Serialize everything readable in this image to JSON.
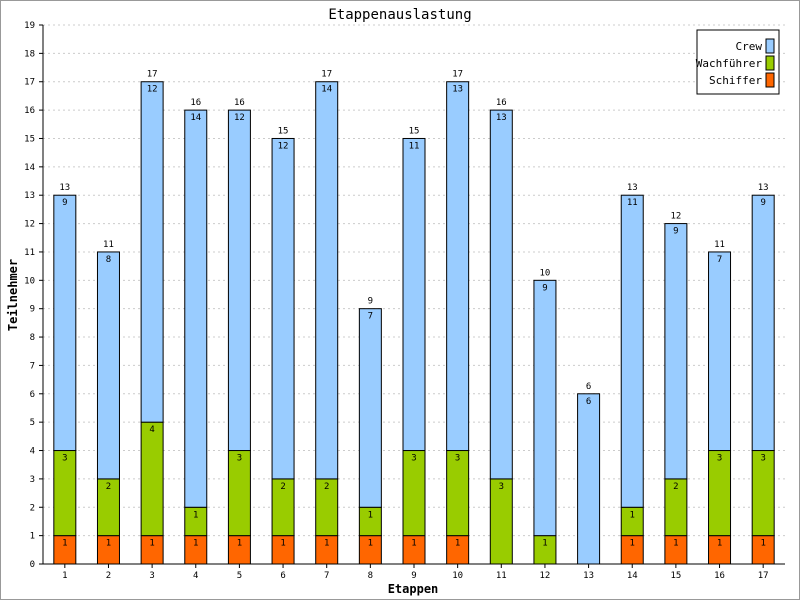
{
  "chart_data": {
    "type": "bar",
    "stacked": true,
    "title": "Etappenauslastung",
    "xlabel": "Etappen",
    "ylabel": "Teilnehmer",
    "ylim": [
      0,
      19
    ],
    "yticks": [
      "0",
      "1",
      "2",
      "3",
      "4",
      "5",
      "6",
      "7",
      "8",
      "9",
      "10",
      "11",
      "12",
      "13",
      "14",
      "15",
      "16",
      "17",
      "18",
      "19"
    ],
    "grid": true,
    "legend_position": "top-right",
    "categories": [
      "1",
      "2",
      "3",
      "4",
      "5",
      "6",
      "7",
      "8",
      "9",
      "10",
      "11",
      "12",
      "13",
      "14",
      "15",
      "16",
      "17"
    ],
    "series": [
      {
        "name": "Schiffer",
        "color": "#ff6600",
        "values": [
          1,
          1,
          1,
          1,
          1,
          1,
          1,
          1,
          1,
          1,
          0,
          0,
          0,
          1,
          1,
          1,
          1
        ]
      },
      {
        "name": "Wachführer",
        "color": "#99cc00",
        "values": [
          3,
          2,
          4,
          1,
          3,
          2,
          2,
          1,
          3,
          3,
          3,
          1,
          0,
          1,
          2,
          3,
          3
        ]
      },
      {
        "name": "Crew",
        "color": "#99ccff",
        "values": [
          9,
          8,
          12,
          14,
          12,
          12,
          14,
          7,
          11,
          13,
          13,
          9,
          6,
          11,
          9,
          7,
          9
        ]
      }
    ],
    "totals": [
      13,
      11,
      17,
      16,
      16,
      15,
      17,
      9,
      15,
      17,
      16,
      10,
      6,
      13,
      12,
      11,
      13
    ]
  },
  "legend_order": [
    "Crew",
    "Wachführer",
    "Schiffer"
  ]
}
